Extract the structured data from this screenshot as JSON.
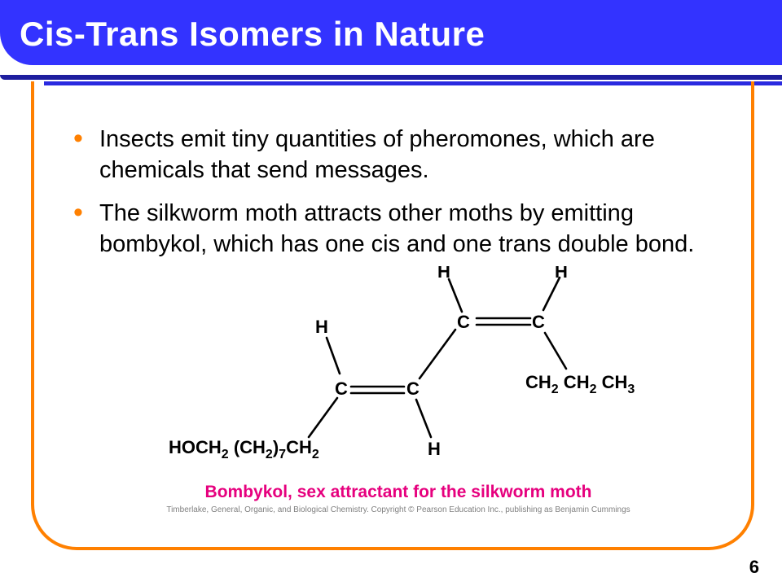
{
  "slide": {
    "title": "Cis-Trans Isomers in Nature",
    "page_number": "6"
  },
  "bullets": {
    "b1": "Insects emit tiny quantities of pheromones, which are chemicals that send messages.",
    "b2": "The silkworm moth attracts other moths by emitting bombykol, which has one cis and one trans double bond.",
    "color": "#ff8000"
  },
  "colors": {
    "header_bg": "#3333ff",
    "title_text": "#ffffff",
    "frame_border": "#ff8000",
    "bullet_marker": "#ff8000",
    "caption": "#e6007e",
    "credit": "#808080",
    "body_text": "#000000"
  },
  "diagram": {
    "type": "chemical-structure",
    "labels": {
      "H1": "H",
      "H2": "H",
      "H3": "H",
      "H4": "H",
      "C1": "C",
      "C2": "C",
      "C3": "C",
      "C4": "C",
      "left_chain1": "HOCH",
      "left_sub1": "2",
      "left_chain2": "(CH",
      "left_sub2": "2",
      "left_chain3": ")",
      "left_sub3": "7",
      "left_chain4": "CH",
      "left_sub4": "2",
      "right_chain": "CH",
      "right_sub1": "2",
      "right_chain2": " CH",
      "right_sub2": "2",
      "right_chain3": " CH",
      "right_sub3": "3"
    },
    "caption": "Bombykol, sex attractant for the silkworm moth",
    "credit": "Timberlake, General, Organic, and Biological Chemistry. Copyright © Pearson Education Inc., publishing as Benjamin Cummings",
    "stroke": "#000000",
    "stroke_width": 2.4,
    "font_size": 22
  }
}
